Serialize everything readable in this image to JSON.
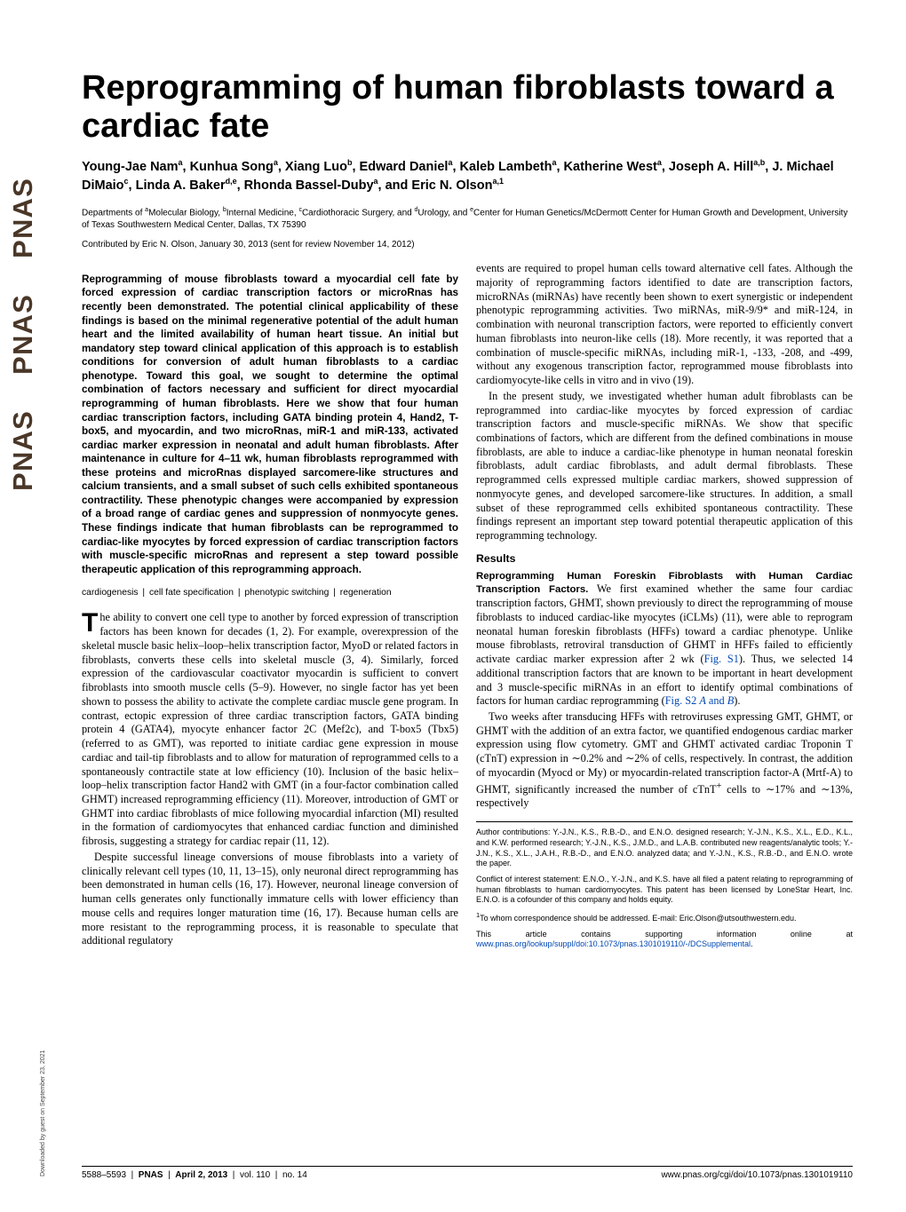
{
  "strip": {
    "word": "PNAS",
    "repeat": 3,
    "color": "#4a3728",
    "font_size": 31
  },
  "title": "Reprogramming of human fibroblasts toward a cardiac fate",
  "authors_html": "Young-Jae Nam<sup>a</sup>, Kunhua Song<sup>a</sup>, Xiang Luo<sup>b</sup>, Edward Daniel<sup>a</sup>, Kaleb Lambeth<sup>a</sup>, Katherine West<sup>a</sup>, Joseph A. Hill<sup>a,b</sup>, J. Michael DiMaio<sup>c</sup>, Linda A. Baker<sup>d,e</sup>, Rhonda Bassel-Duby<sup>a</sup>, and Eric N. Olson<sup>a,1</sup>",
  "affiliations_html": "Departments of <sup>a</sup>Molecular Biology, <sup>b</sup>Internal Medicine, <sup>c</sup>Cardiothoracic Surgery, and <sup>d</sup>Urology, and <sup>e</sup>Center for Human Genetics/McDermott Center for Human Growth and Development, University of Texas Southwestern Medical Center, Dallas, TX 75390",
  "contributed_line": "Contributed by Eric N. Olson, January 30, 2013 (sent for review November 14, 2012)",
  "abstract": "Reprogramming of mouse fibroblasts toward a myocardial cell fate by forced expression of cardiac transcription factors or microRnas has recently been demonstrated. The potential clinical applicability of these findings is based on the minimal regenerative potential of the adult human heart and the limited availability of human heart tissue. An initial but mandatory step toward clinical application of this approach is to establish conditions for conversion of adult human fibroblasts to a cardiac phenotype. Toward this goal, we sought to determine the optimal combination of factors necessary and sufficient for direct myocardial reprogramming of human fibroblasts. Here we show that four human cardiac transcription factors, including GATA binding protein 4, Hand2, T-box5, and myocardin, and two microRnas, miR-1 and miR-133, activated cardiac marker expression in neonatal and adult human fibroblasts. After maintenance in culture for 4–11 wk, human fibroblasts reprogrammed with these proteins and microRnas displayed sarcomere-like structures and calcium transients, and a small subset of such cells exhibited spontaneous contractility. These phenotypic changes were accompanied by expression of a broad range of cardiac genes and suppression of nonmyocyte genes. These findings indicate that human fibroblasts can be reprogrammed to cardiac-like myocytes by forced expression of cardiac transcription factors with muscle-specific microRnas and represent a step toward possible therapeutic application of this reprogramming approach.",
  "keywords": [
    "cardiogenesis",
    "cell fate specification",
    "phenotypic switching",
    "regeneration"
  ],
  "left_col_paras": [
    "he ability to convert one cell type to another by forced expression of transcription factors has been known for decades (1, 2). For example, overexpression of the skeletal muscle basic helix–loop–helix transcription factor, MyoD or related factors in fibroblasts, converts these cells into skeletal muscle (3, 4). Similarly, forced expression of the cardiovascular coactivator myocardin is sufficient to convert fibroblasts into smooth muscle cells (5–9). However, no single factor has yet been shown to possess the ability to activate the complete cardiac muscle gene program. In contrast, ectopic expression of three cardiac transcription factors, GATA binding protein 4 (GATA4), myocyte enhancer factor 2C (Mef2c), and T-box5 (Tbx5) (referred to as GMT), was reported to initiate cardiac gene expression in mouse cardiac and tail-tip fibroblasts and to allow for maturation of reprogrammed cells to a spontaneously contractile state at low efficiency (10). Inclusion of the basic helix–loop–helix transcription factor Hand2 with GMT (in a four-factor combination called GHMT) increased reprogramming efficiency (11). Moreover, introduction of GMT or GHMT into cardiac fibroblasts of mice following myocardial infarction (MI) resulted in the formation of cardiomyocytes that enhanced cardiac function and diminished fibrosis, suggesting a strategy for cardiac repair (11, 12).",
    "Despite successful lineage conversions of mouse fibroblasts into a variety of clinically relevant cell types (10, 11, 13–15), only neuronal direct reprogramming has been demonstrated in human cells (16, 17). However, neuronal lineage conversion of human cells generates only functionally immature cells with lower efficiency than mouse cells and requires longer maturation time (16, 17). Because human cells are more resistant to the reprogramming process, it is reasonable to speculate that additional regulatory"
  ],
  "dropcap_letter": "T",
  "right_col_top_paras": [
    "events are required to propel human cells toward alternative cell fates. Although the majority of reprogramming factors identified to date are transcription factors, microRNAs (miRNAs) have recently been shown to exert synergistic or independent phenotypic reprogramming activities. Two miRNAs, miR-9/9* and miR-124, in combination with neuronal transcription factors, were reported to efficiently convert human fibroblasts into neuron-like cells (18). More recently, it was reported that a combination of muscle-specific miRNAs, including miR-1, -133, -208, and -499, without any exogenous transcription factor, reprogrammed mouse fibroblasts into cardiomyocyte-like cells in vitro and in vivo (19).",
    "In the present study, we investigated whether human adult fibroblasts can be reprogrammed into cardiac-like myocytes by forced expression of cardiac transcription factors and muscle-specific miRNAs. We show that specific combinations of factors, which are different from the defined combinations in mouse fibroblasts, are able to induce a cardiac-like phenotype in human neonatal foreskin fibroblasts, adult cardiac fibroblasts, and adult dermal fibroblasts. These reprogrammed cells expressed multiple cardiac markers, showed suppression of nonmyocyte genes, and developed sarcomere-like structures. In addition, a small subset of these reprogrammed cells exhibited spontaneous contractility. These findings represent an important step toward potential therapeutic application of this reprogramming technology."
  ],
  "results_heading": "Results",
  "results_runin": "Reprogramming Human Foreskin Fibroblasts with Human Cardiac Transcription Factors.",
  "results_para1_html": " We first examined whether the same four cardiac transcription factors, GHMT, shown previously to direct the reprogramming of mouse fibroblasts to induced cardiac-like myocytes (iCLMs) (11), were able to reprogram neonatal human foreskin fibroblasts (HFFs) toward a cardiac phenotype. Unlike mouse fibroblasts, retroviral transduction of GHMT in HFFs failed to efficiently activate cardiac marker expression after 2 wk (<a class=\"link\" href=\"#\" data-name=\"fig-link-s1\" data-interactable=\"true\">Fig. S1</a>). Thus, we selected 14 additional transcription factors that are known to be important in heart development and 3 muscle-specific miRNAs in an effort to identify optimal combinations of factors for human cardiac reprogramming (<a class=\"link\" href=\"#\" data-name=\"fig-link-s2\" data-interactable=\"true\">Fig. S2 <i>A</i> and <i>B</i></a>).",
  "results_para2_html": "Two weeks after transducing HFFs with retroviruses expressing GMT, GHMT, or GHMT with the addition of an extra factor, we quantified endogenous cardiac marker expression using flow cytometry. GMT and GHMT activated cardiac Troponin T (cTnT) expression in ∼0.2% and ∼2% of cells, respectively. In contrast, the addition of myocardin (Myocd or My) or myocardin-related transcription factor-A (Mrtf-A) to GHMT, significantly increased the number of cTnT<sup>+</sup> cells to ∼17% and ∼13%, respectively",
  "footnotes": {
    "author_contrib": "Author contributions: Y.-J.N., K.S., R.B.-D., and E.N.O. designed research; Y.-J.N., K.S., X.L., E.D., K.L., and K.W. performed research; Y.-J.N., K.S., J.M.D., and L.A.B. contributed new reagents/analytic tools; Y.-J.N., K.S., X.L., J.A.H., R.B.-D., and E.N.O. analyzed data; and Y.-J.N., K.S., R.B.-D., and E.N.O. wrote the paper.",
    "conflict": "Conflict of interest statement: E.N.O., Y.-J.N., and K.S. have all filed a patent relating to reprogramming of human fibroblasts to human cardiomyocytes. This patent has been licensed by LoneStar Heart, Inc. E.N.O. is a cofounder of this company and holds equity.",
    "correspondence_html": "<sup>1</sup>To whom correspondence should be addressed. E-mail: Eric.Olson@utsouthwestern.edu.",
    "supp_html": "This article contains supporting information online at <a href=\"#\" data-name=\"supp-link\" data-interactable=\"true\">www.pnas.org/lookup/suppl/doi:10.1073/pnas.1301019110/-/DCSupplemental</a>."
  },
  "footer": {
    "pages": "5588–5593",
    "journal": "PNAS",
    "date": "April 2, 2013",
    "volume": "vol. 110",
    "issue": "no. 14",
    "doi_url": "www.pnas.org/cgi/doi/10.1073/pnas.1301019110"
  },
  "download_note": "Downloaded by guest on September 23, 2021"
}
